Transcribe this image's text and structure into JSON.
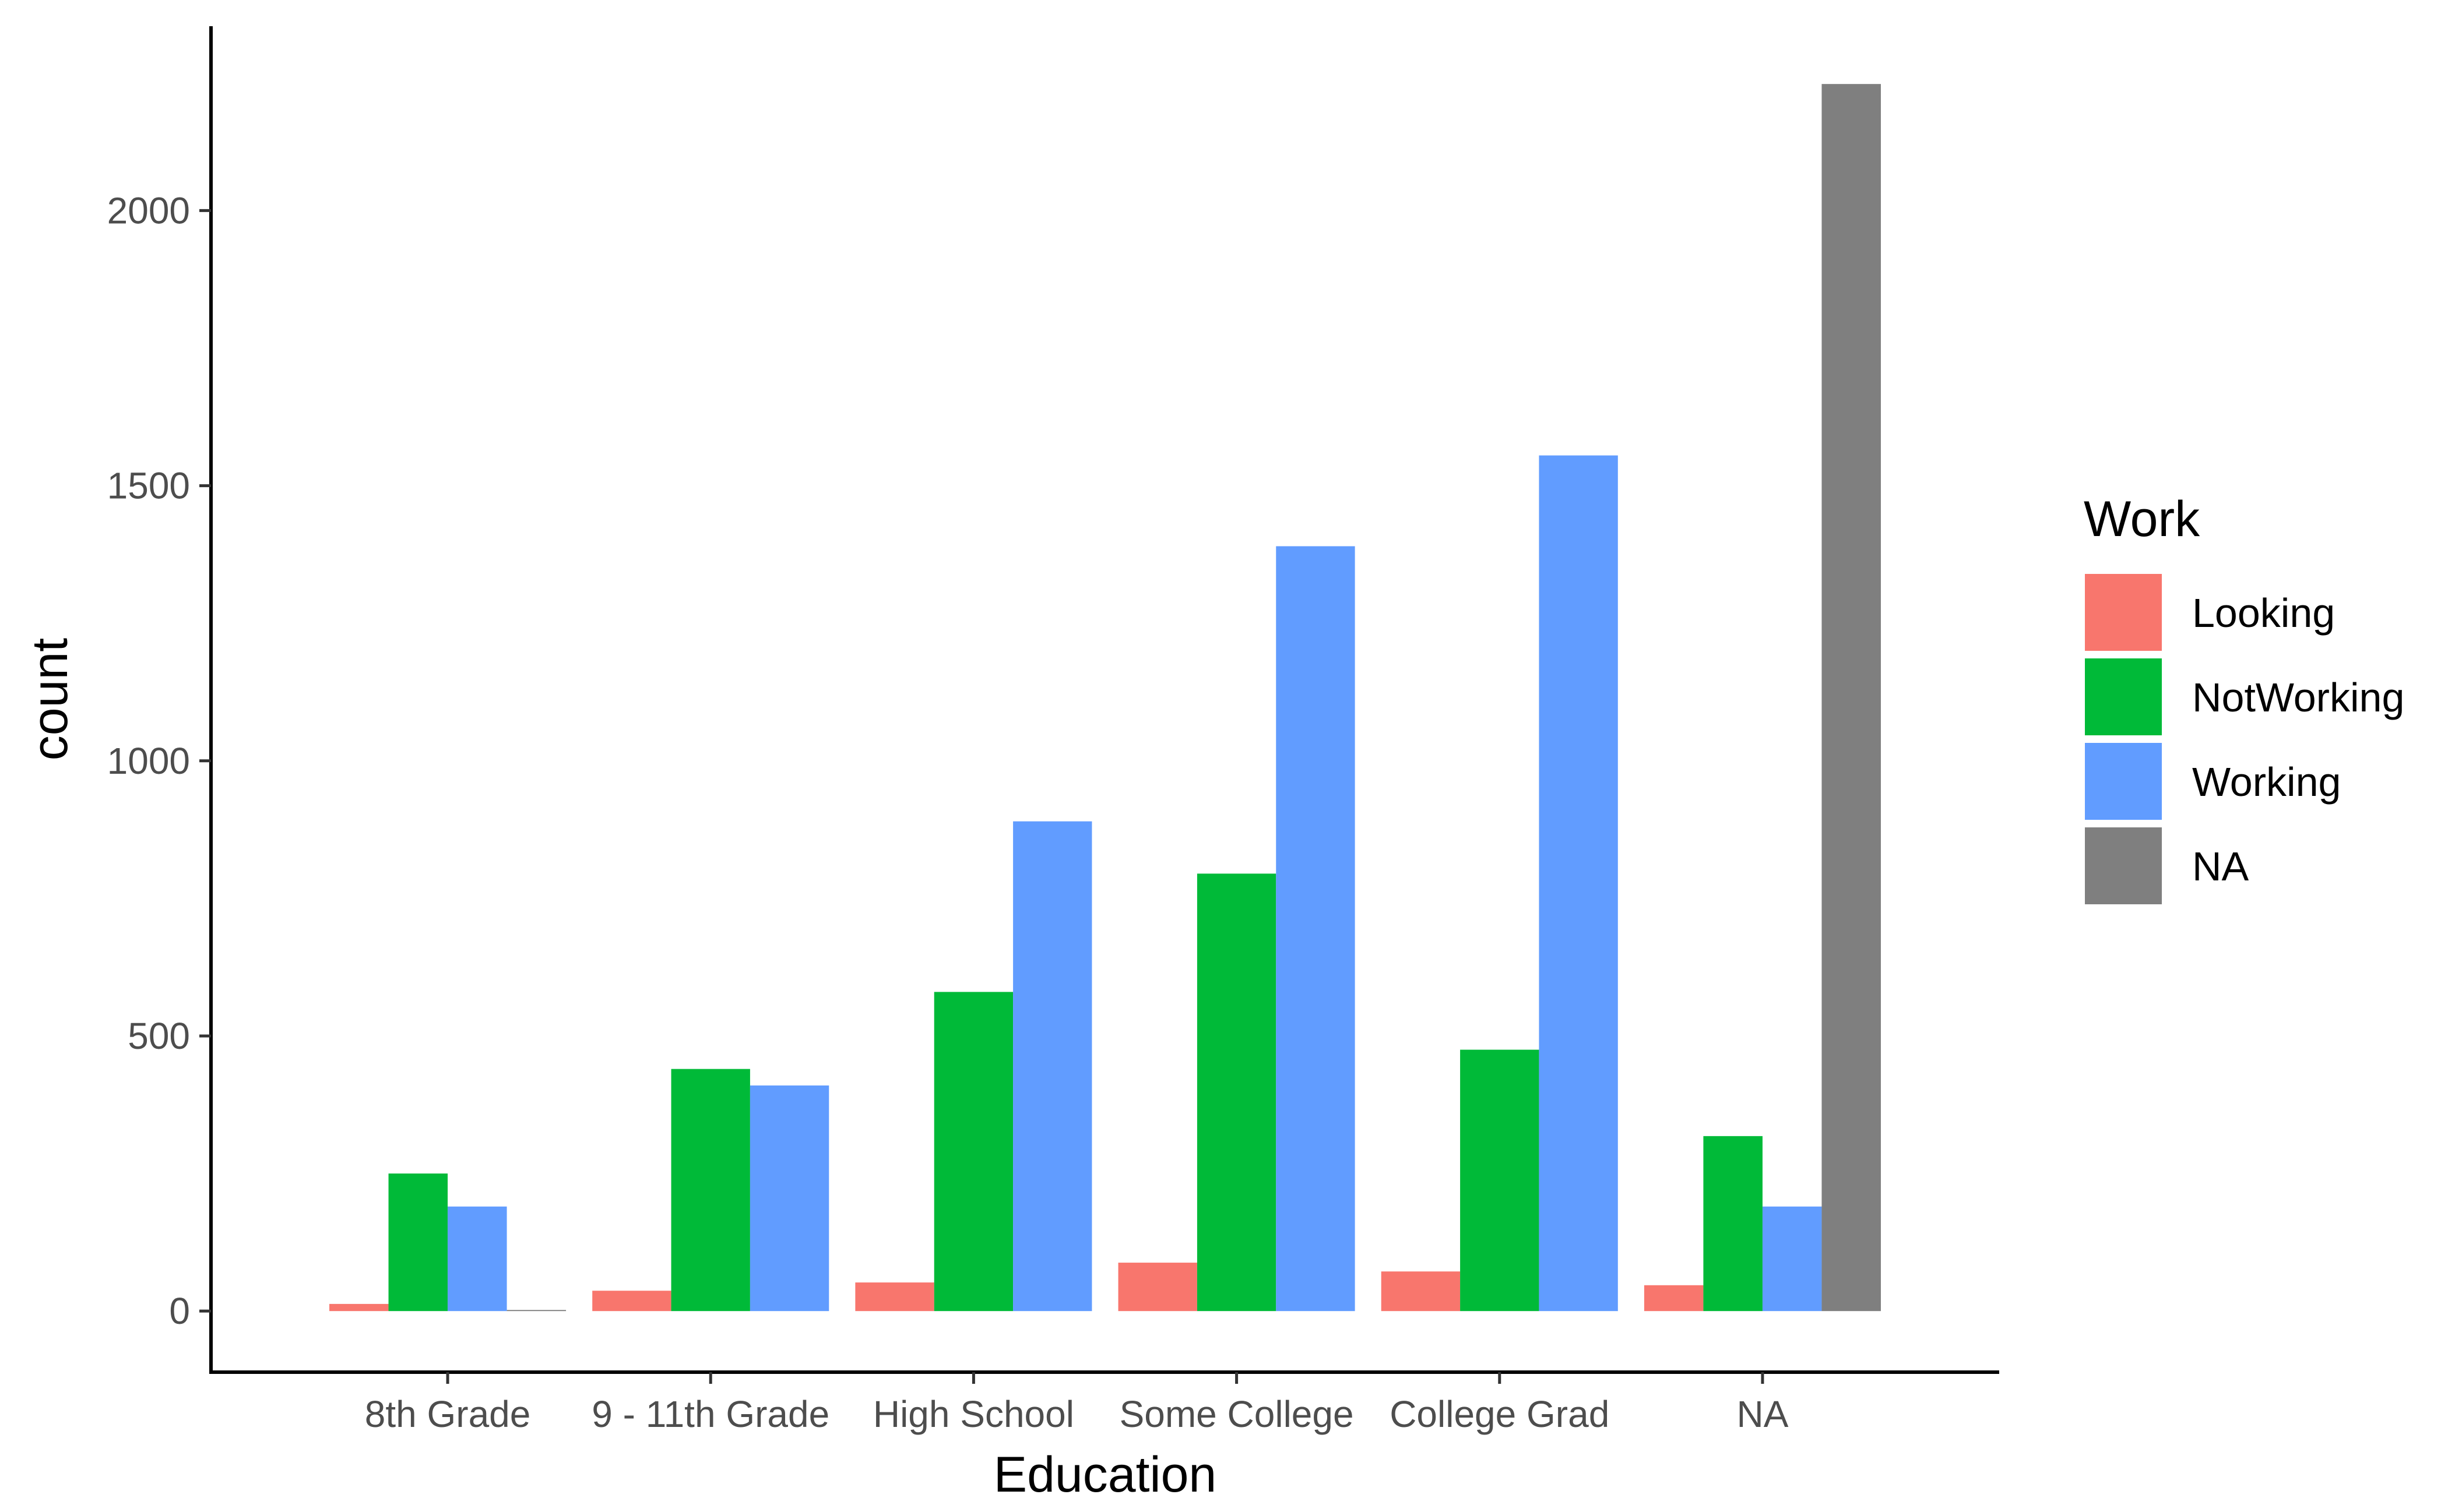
{
  "chart_data": {
    "type": "bar",
    "xlabel": "Education",
    "ylabel": "count",
    "categories": [
      "8th Grade",
      "9 - 11th Grade",
      "High School",
      "Some College",
      "College Grad",
      "NA"
    ],
    "ylim": [
      -111,
      2335
    ],
    "yticks": [
      0,
      500,
      1000,
      1500,
      2000
    ],
    "grid": false,
    "legend": {
      "title": "Work",
      "position": "right",
      "entries": [
        "Looking",
        "NotWorking",
        "Working",
        "NA"
      ]
    },
    "series": [
      {
        "name": "Looking",
        "color": "#F8766D",
        "values": [
          13,
          37,
          52,
          88,
          72,
          47
        ]
      },
      {
        "name": "NotWorking",
        "color": "#00BA38",
        "values": [
          250,
          440,
          580,
          795,
          475,
          318
        ]
      },
      {
        "name": "Working",
        "color": "#619CFF",
        "values": [
          190,
          410,
          890,
          1390,
          1555,
          190
        ]
      },
      {
        "name": "NA",
        "color": "#7F7F7F",
        "values": [
          2,
          null,
          null,
          null,
          null,
          2230
        ]
      }
    ]
  }
}
